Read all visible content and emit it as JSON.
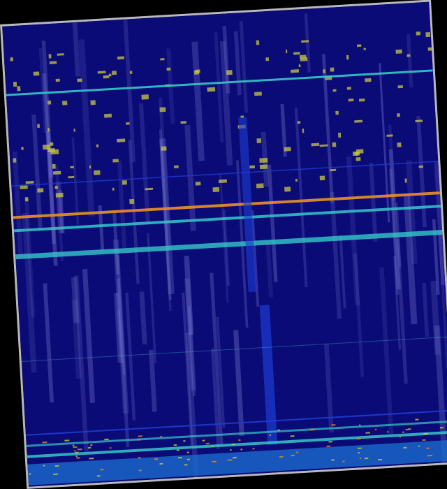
{
  "spectrogram": {
    "colors": {
      "background": "#0b0b78",
      "border": "#b8b8c0",
      "streak": "#8c8ce0",
      "cyan": "#35c8c8",
      "orange": "#e08a2a",
      "yellow": "#c8c840",
      "blue": "#1e3cd2"
    }
  }
}
